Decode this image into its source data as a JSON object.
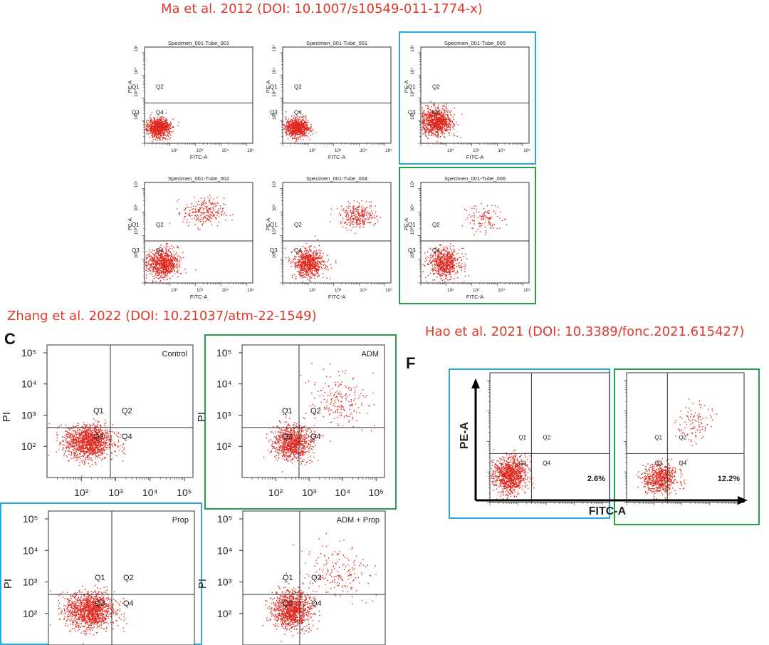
{
  "captions": {
    "ma": "Ma et al. 2012 (DOI: 10.1007/s10549-011-1774-x)",
    "zhang": "Zhang et al. 2022 (DOI: 10.21037/atm-22-1549)",
    "hao": "Hao et al. 2021 (DOI: 10.3389/fonc.2021.615427)"
  },
  "panel_letters": {
    "c": "C",
    "f": "F"
  },
  "colors": {
    "caption": "#e0392b",
    "dots": "#e0281e",
    "blue_frame": "#29a8e0",
    "green_frame": "#2a9d4e"
  },
  "chart_data": [
    {
      "id": "ma-1",
      "type": "scatter",
      "title": "Specimen_001-Tube_001",
      "xlabel": "FITC-A",
      "ylabel": "PE-A",
      "quadrants": [
        "Q1",
        "Q2",
        "Q3",
        "Q4"
      ],
      "gates": {
        "x": 10,
        "y": 600
      },
      "x_ticks": [
        "10²",
        "10³",
        "10⁴",
        "10⁵"
      ],
      "y_ticks": [
        "10²",
        "10³",
        "10⁴",
        "10⁵"
      ],
      "clusters": [
        {
          "x_log10": 1.55,
          "y_log10": 1.7,
          "spread_x": 0.22,
          "spread_y": 0.2,
          "n": 850
        }
      ]
    },
    {
      "id": "ma-2",
      "type": "scatter",
      "title": "Specimen_001-Tube_001",
      "xlabel": "FITC-A",
      "ylabel": "PE-A",
      "quadrants": [
        "Q1",
        "Q2",
        "Q3",
        "Q4"
      ],
      "gates": {
        "x": 10,
        "y": 600
      },
      "x_ticks": [
        "10²",
        "10³",
        "10⁴",
        "10⁵"
      ],
      "y_ticks": [
        "10²",
        "10³",
        "10⁴",
        "10⁵"
      ],
      "clusters": [
        {
          "x_log10": 1.55,
          "y_log10": 1.7,
          "spread_x": 0.22,
          "spread_y": 0.2,
          "n": 850
        }
      ]
    },
    {
      "id": "ma-3",
      "type": "scatter",
      "title": "Specimen_001-Tube_005",
      "xlabel": "FITC-A",
      "ylabel": "PE-A",
      "quadrants": [
        "Q1",
        "Q2",
        "Q3",
        "Q4"
      ],
      "gates": {
        "x": 10,
        "y": 600
      },
      "x_ticks": [
        "10²",
        "10³",
        "10⁴",
        "10⁵"
      ],
      "y_ticks": [
        "10²",
        "10³",
        "10⁴",
        "10⁵"
      ],
      "clusters": [
        {
          "x_log10": 1.6,
          "y_log10": 1.95,
          "spread_x": 0.3,
          "spread_y": 0.3,
          "n": 900
        }
      ]
    },
    {
      "id": "ma-4",
      "type": "scatter",
      "title": "Specimen_001-Tube_002",
      "xlabel": "FITC-A",
      "ylabel": "PE-A",
      "quadrants": [
        "Q1",
        "Q2",
        "Q3",
        "Q4"
      ],
      "gates": {
        "x": 10,
        "y": 600
      },
      "x_ticks": [
        "10²",
        "10³",
        "10⁴",
        "10⁵"
      ],
      "y_ticks": [
        "10²",
        "10³",
        "10⁴",
        "10⁵"
      ],
      "clusters": [
        {
          "x_log10": 1.7,
          "y_log10": 1.85,
          "spread_x": 0.3,
          "spread_y": 0.3,
          "n": 800
        },
        {
          "x_log10": 3.3,
          "y_log10": 4.0,
          "spread_x": 0.4,
          "spread_y": 0.3,
          "n": 240
        }
      ]
    },
    {
      "id": "ma-5",
      "type": "scatter",
      "title": "Specimen_001-Tube_004",
      "xlabel": "FITC-A",
      "ylabel": "PE-A",
      "quadrants": [
        "Q1",
        "Q2",
        "Q3",
        "Q4"
      ],
      "gates": {
        "x": 10,
        "y": 600
      },
      "x_ticks": [
        "10²",
        "10³",
        "10⁴",
        "10⁵"
      ],
      "y_ticks": [
        "10²",
        "10³",
        "10⁴",
        "10⁵"
      ],
      "clusters": [
        {
          "x_log10": 2.0,
          "y_log10": 1.85,
          "spread_x": 0.3,
          "spread_y": 0.3,
          "n": 750
        },
        {
          "x_log10": 3.95,
          "y_log10": 3.85,
          "spread_x": 0.35,
          "spread_y": 0.25,
          "n": 280
        }
      ]
    },
    {
      "id": "ma-6",
      "type": "scatter",
      "title": "Specimen_001-Tube_006",
      "xlabel": "FITC-A",
      "ylabel": "PE-A",
      "quadrants": [
        "Q1",
        "Q2",
        "Q3",
        "Q4"
      ],
      "gates": {
        "x": 10,
        "y": 600
      },
      "x_ticks": [
        "10²",
        "10³",
        "10⁴",
        "10⁵"
      ],
      "y_ticks": [
        "10²",
        "10³",
        "10⁴",
        "10⁵"
      ],
      "clusters": [
        {
          "x_log10": 1.9,
          "y_log10": 1.85,
          "spread_x": 0.3,
          "spread_y": 0.3,
          "n": 650
        },
        {
          "x_log10": 3.5,
          "y_log10": 3.7,
          "spread_x": 0.35,
          "spread_y": 0.3,
          "n": 110
        }
      ]
    },
    {
      "id": "zhang-control",
      "type": "scatter",
      "title": "Control",
      "xlabel": "",
      "ylabel": "PI",
      "quadrants": [
        "Q1",
        "Q2",
        "Q3",
        "Q4"
      ],
      "gates": {
        "x": 700,
        "y": 400
      },
      "x_ticks": [
        "10²",
        "10³",
        "10⁴",
        "10⁵"
      ],
      "y_ticks": [
        "10²",
        "10³",
        "10⁴",
        "10⁵"
      ],
      "clusters": [
        {
          "x_log10": 2.2,
          "y_log10": 2.15,
          "spread_x": 0.35,
          "spread_y": 0.28,
          "n": 1300
        }
      ]
    },
    {
      "id": "zhang-adm",
      "type": "scatter",
      "title": "ADM",
      "xlabel": "",
      "ylabel": "PI",
      "quadrants": [
        "Q1",
        "Q2",
        "Q3",
        "Q4"
      ],
      "gates": {
        "x": 500,
        "y": 400
      },
      "x_ticks": [
        "10²",
        "10³",
        "10⁴",
        "10⁵"
      ],
      "y_ticks": [
        "10²",
        "10³",
        "10⁴",
        "10⁵"
      ],
      "clusters": [
        {
          "x_log10": 2.5,
          "y_log10": 2.15,
          "spread_x": 0.28,
          "spread_y": 0.28,
          "n": 900
        },
        {
          "x_log10": 3.9,
          "y_log10": 3.4,
          "spread_x": 0.4,
          "spread_y": 0.45,
          "n": 200
        }
      ]
    },
    {
      "id": "zhang-prop",
      "type": "scatter",
      "title": "Prop",
      "xlabel": "",
      "ylabel": "PI",
      "quadrants": [
        "Q1",
        "Q2",
        "Q3",
        "Q4"
      ],
      "gates": {
        "x": 700,
        "y": 400
      },
      "x_ticks": [],
      "y_ticks": [
        "10²",
        "10³",
        "10⁴",
        "10⁵"
      ],
      "clusters": [
        {
          "x_log10": 2.2,
          "y_log10": 2.1,
          "spread_x": 0.35,
          "spread_y": 0.3,
          "n": 1300
        }
      ]
    },
    {
      "id": "zhang-adm-prop",
      "type": "scatter",
      "title": "ADM + Prop",
      "xlabel": "",
      "ylabel": "PI",
      "quadrants": [
        "Q1",
        "Q2",
        "Q3",
        "Q4"
      ],
      "gates": {
        "x": 500,
        "y": 400
      },
      "x_ticks": [],
      "y_ticks": [
        "10²",
        "10³",
        "10⁴",
        "10⁵"
      ],
      "clusters": [
        {
          "x_log10": 2.45,
          "y_log10": 2.15,
          "spread_x": 0.28,
          "spread_y": 0.3,
          "n": 1100
        },
        {
          "x_log10": 3.8,
          "y_log10": 3.3,
          "spread_x": 0.45,
          "spread_y": 0.45,
          "n": 170
        }
      ]
    },
    {
      "id": "hao-1",
      "type": "scatter",
      "title": "",
      "xlabel": "FITC-A",
      "ylabel": "PE-A",
      "quadrants": [
        "Q1",
        "Q2",
        "Q3",
        "Q4"
      ],
      "gates": {
        "x": 300,
        "y": 400
      },
      "q4_percent": "2.6%",
      "x_ticks": [],
      "y_ticks": [],
      "clusters": [
        {
          "x_log10": 1.7,
          "y_log10": 1.9,
          "spread_x": 0.28,
          "spread_y": 0.3,
          "n": 1000
        }
      ]
    },
    {
      "id": "hao-2",
      "type": "scatter",
      "title": "",
      "xlabel": "FITC-A",
      "ylabel": "PE-A",
      "quadrants": [
        "Q1",
        "Q2",
        "Q3",
        "Q4"
      ],
      "gates": {
        "x": 300,
        "y": 400
      },
      "q4_percent": "12.2%",
      "x_ticks": [],
      "y_ticks": [],
      "clusters": [
        {
          "x_log10": 2.2,
          "y_log10": 1.8,
          "spread_x": 0.3,
          "spread_y": 0.25,
          "n": 650
        },
        {
          "x_log10": 3.5,
          "y_log10": 3.6,
          "spread_x": 0.3,
          "spread_y": 0.35,
          "n": 100
        }
      ]
    }
  ]
}
